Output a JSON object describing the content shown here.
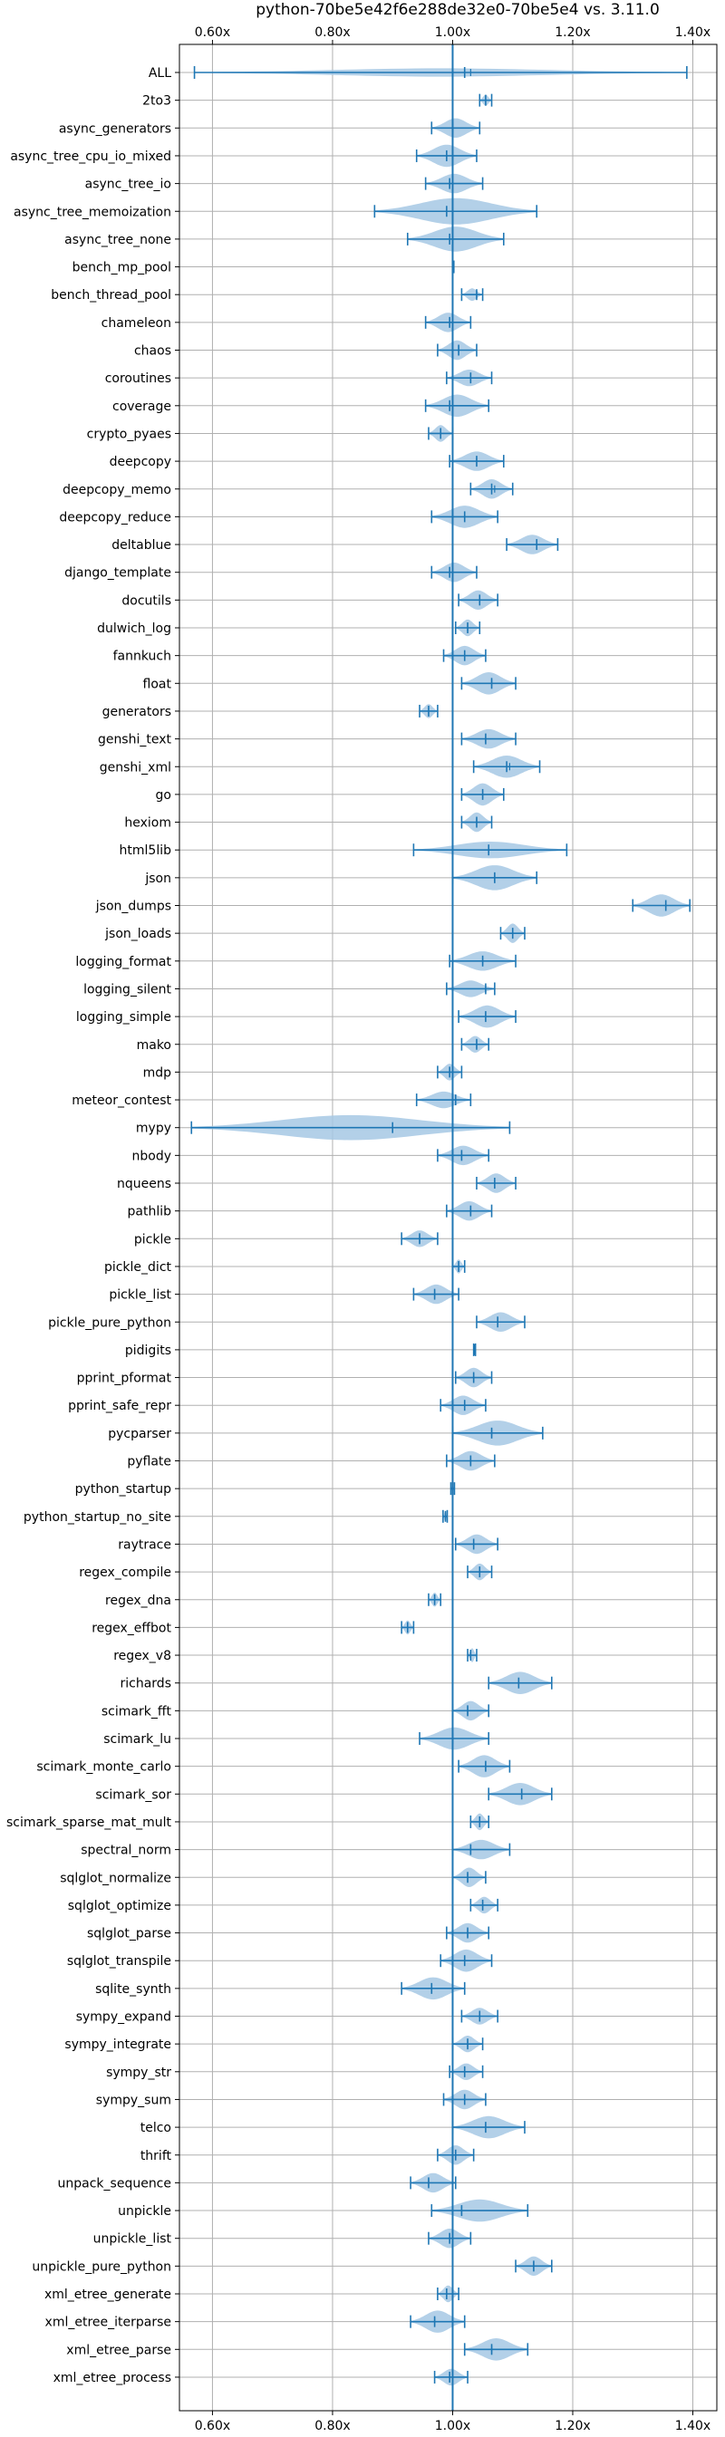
{
  "chart_data": {
    "type": "violin",
    "title": "python-70be5e42f6e288de32e0-70be5e4 vs. 3.11.0",
    "xlabel": "",
    "ylabel": "",
    "xlim": [
      0.545,
      1.44
    ],
    "x_ticks": [
      0.6,
      0.8,
      1.0,
      1.2,
      1.4
    ],
    "x_tick_labels": [
      "0.60x",
      "0.80x",
      "1.00x",
      "1.20x",
      "1.40x"
    ],
    "tick_axes": [
      "top",
      "bottom"
    ],
    "reference_line": 1.0,
    "grid": true,
    "colors": {
      "accent": "#1f77b4",
      "violin_fill": "#a6c8e4",
      "grid": "#b0b0b0"
    },
    "series": [
      {
        "name": "ALL",
        "min": 0.57,
        "max": 1.39,
        "median": 1.02,
        "mean": 1.03,
        "width": 0.3
      },
      {
        "name": "2to3",
        "min": 1.045,
        "max": 1.065,
        "median": 1.055,
        "mean": 1.055,
        "width": 0.4
      },
      {
        "name": "async_generators",
        "min": 0.965,
        "max": 1.045,
        "median": 1.0,
        "mean": 1.0,
        "width": 0.7
      },
      {
        "name": "async_tree_cpu_io_mixed",
        "min": 0.94,
        "max": 1.04,
        "median": 0.99,
        "mean": 0.99,
        "width": 0.8
      },
      {
        "name": "async_tree_io",
        "min": 0.955,
        "max": 1.05,
        "median": 0.995,
        "mean": 0.995,
        "width": 0.7
      },
      {
        "name": "async_tree_memoization",
        "min": 0.87,
        "max": 1.14,
        "median": 0.99,
        "mean": 1.0,
        "width": 0.95
      },
      {
        "name": "async_tree_none",
        "min": 0.925,
        "max": 1.085,
        "median": 0.995,
        "mean": 1.0,
        "width": 0.9
      },
      {
        "name": "bench_mp_pool",
        "min": 1.0,
        "max": 1.002,
        "median": 1.001,
        "mean": 1.001,
        "width": 0.2
      },
      {
        "name": "bench_thread_pool",
        "min": 1.015,
        "max": 1.05,
        "median": 1.04,
        "mean": 1.04,
        "width": 0.45
      },
      {
        "name": "chameleon",
        "min": 0.955,
        "max": 1.03,
        "median": 0.995,
        "mean": 0.995,
        "width": 0.7
      },
      {
        "name": "chaos",
        "min": 0.975,
        "max": 1.04,
        "median": 1.01,
        "mean": 1.01,
        "width": 0.7
      },
      {
        "name": "coroutines",
        "min": 0.99,
        "max": 1.065,
        "median": 1.03,
        "mean": 1.03,
        "width": 0.6
      },
      {
        "name": "coverage",
        "min": 0.955,
        "max": 1.06,
        "median": 0.995,
        "mean": 0.995,
        "width": 0.8
      },
      {
        "name": "crypto_pyaes",
        "min": 0.96,
        "max": 1.0,
        "median": 0.98,
        "mean": 0.98,
        "width": 0.6
      },
      {
        "name": "deepcopy",
        "min": 0.995,
        "max": 1.085,
        "median": 1.04,
        "mean": 1.04,
        "width": 0.7
      },
      {
        "name": "deepcopy_memo",
        "min": 1.03,
        "max": 1.1,
        "median": 1.065,
        "mean": 1.07,
        "width": 0.7
      },
      {
        "name": "deepcopy_reduce",
        "min": 0.965,
        "max": 1.075,
        "median": 1.02,
        "mean": 1.02,
        "width": 0.8
      },
      {
        "name": "deltablue",
        "min": 1.09,
        "max": 1.175,
        "median": 1.14,
        "mean": 1.14,
        "width": 0.7
      },
      {
        "name": "django_template",
        "min": 0.965,
        "max": 1.04,
        "median": 0.995,
        "mean": 1.0,
        "width": 0.7
      },
      {
        "name": "docutils",
        "min": 1.01,
        "max": 1.075,
        "median": 1.045,
        "mean": 1.045,
        "width": 0.7
      },
      {
        "name": "dulwich_log",
        "min": 1.005,
        "max": 1.045,
        "median": 1.025,
        "mean": 1.025,
        "width": 0.6
      },
      {
        "name": "fannkuch",
        "min": 0.985,
        "max": 1.055,
        "median": 1.02,
        "mean": 1.02,
        "width": 0.7
      },
      {
        "name": "float",
        "min": 1.015,
        "max": 1.105,
        "median": 1.065,
        "mean": 1.065,
        "width": 0.8
      },
      {
        "name": "generators",
        "min": 0.945,
        "max": 0.975,
        "median": 0.96,
        "mean": 0.96,
        "width": 0.5
      },
      {
        "name": "genshi_text",
        "min": 1.015,
        "max": 1.105,
        "median": 1.055,
        "mean": 1.055,
        "width": 0.7
      },
      {
        "name": "genshi_xml",
        "min": 1.035,
        "max": 1.145,
        "median": 1.09,
        "mean": 1.095,
        "width": 0.8
      },
      {
        "name": "go",
        "min": 1.015,
        "max": 1.085,
        "median": 1.05,
        "mean": 1.05,
        "width": 0.8
      },
      {
        "name": "hexiom",
        "min": 1.015,
        "max": 1.065,
        "median": 1.04,
        "mean": 1.04,
        "width": 0.7
      },
      {
        "name": "html5lib",
        "min": 0.935,
        "max": 1.19,
        "median": 1.06,
        "mean": 1.06,
        "width": 0.6
      },
      {
        "name": "json",
        "min": 1.0,
        "max": 1.14,
        "median": 1.07,
        "mean": 1.07,
        "width": 0.9
      },
      {
        "name": "json_dumps",
        "min": 1.3,
        "max": 1.395,
        "median": 1.355,
        "mean": 1.355,
        "width": 0.8
      },
      {
        "name": "json_loads",
        "min": 1.08,
        "max": 1.12,
        "median": 1.1,
        "mean": 1.1,
        "width": 0.7
      },
      {
        "name": "logging_format",
        "min": 0.995,
        "max": 1.105,
        "median": 1.05,
        "mean": 1.05,
        "width": 0.7
      },
      {
        "name": "logging_silent",
        "min": 0.99,
        "max": 1.07,
        "median": 1.055,
        "mean": 1.055,
        "width": 0.6
      },
      {
        "name": "logging_simple",
        "min": 1.01,
        "max": 1.105,
        "median": 1.055,
        "mean": 1.055,
        "width": 0.8
      },
      {
        "name": "mako",
        "min": 1.015,
        "max": 1.06,
        "median": 1.04,
        "mean": 1.04,
        "width": 0.6
      },
      {
        "name": "mdp",
        "min": 0.975,
        "max": 1.015,
        "median": 0.995,
        "mean": 0.995,
        "width": 0.6
      },
      {
        "name": "meteor_contest",
        "min": 0.94,
        "max": 1.03,
        "median": 1.005,
        "mean": 1.005,
        "width": 0.6
      },
      {
        "name": "mypy",
        "min": 0.565,
        "max": 1.095,
        "median": 0.9,
        "mean": 1.095,
        "width": 0.9
      },
      {
        "name": "nbody",
        "min": 0.975,
        "max": 1.06,
        "median": 1.015,
        "mean": 1.015,
        "width": 0.7
      },
      {
        "name": "nqueens",
        "min": 1.04,
        "max": 1.105,
        "median": 1.07,
        "mean": 1.07,
        "width": 0.7
      },
      {
        "name": "pathlib",
        "min": 0.99,
        "max": 1.065,
        "median": 1.03,
        "mean": 1.03,
        "width": 0.7
      },
      {
        "name": "pickle",
        "min": 0.915,
        "max": 0.975,
        "median": 0.945,
        "mean": 0.945,
        "width": 0.6
      },
      {
        "name": "pickle_dict",
        "min": 1.0,
        "max": 1.02,
        "median": 1.01,
        "mean": 1.01,
        "width": 0.5
      },
      {
        "name": "pickle_list",
        "min": 0.935,
        "max": 1.01,
        "median": 0.97,
        "mean": 0.97,
        "width": 0.7
      },
      {
        "name": "pickle_pure_python",
        "min": 1.04,
        "max": 1.12,
        "median": 1.075,
        "mean": 1.075,
        "width": 0.7
      },
      {
        "name": "pidigits",
        "min": 1.035,
        "max": 1.038,
        "median": 1.036,
        "mean": 1.036,
        "width": 0.35
      },
      {
        "name": "pprint_pformat",
        "min": 1.005,
        "max": 1.065,
        "median": 1.035,
        "mean": 1.035,
        "width": 0.7
      },
      {
        "name": "pprint_safe_repr",
        "min": 0.98,
        "max": 1.055,
        "median": 1.02,
        "mean": 1.02,
        "width": 0.7
      },
      {
        "name": "pycparser",
        "min": 1.0,
        "max": 1.15,
        "median": 1.065,
        "mean": 1.065,
        "width": 0.9
      },
      {
        "name": "pyflate",
        "min": 0.99,
        "max": 1.07,
        "median": 1.03,
        "mean": 1.03,
        "width": 0.7
      },
      {
        "name": "python_startup",
        "min": 0.997,
        "max": 1.003,
        "median": 1.0,
        "mean": 1.0,
        "width": 0.35
      },
      {
        "name": "python_startup_no_site",
        "min": 0.984,
        "max": 0.991,
        "median": 0.988,
        "mean": 0.988,
        "width": 0.35
      },
      {
        "name": "raytrace",
        "min": 1.005,
        "max": 1.075,
        "median": 1.035,
        "mean": 1.035,
        "width": 0.7
      },
      {
        "name": "regex_compile",
        "min": 1.025,
        "max": 1.065,
        "median": 1.045,
        "mean": 1.045,
        "width": 0.6
      },
      {
        "name": "regex_dna",
        "min": 0.96,
        "max": 0.98,
        "median": 0.97,
        "mean": 0.97,
        "width": 0.5
      },
      {
        "name": "regex_effbot",
        "min": 0.915,
        "max": 0.935,
        "median": 0.925,
        "mean": 0.925,
        "width": 0.5
      },
      {
        "name": "regex_v8",
        "min": 1.025,
        "max": 1.04,
        "median": 1.03,
        "mean": 1.03,
        "width": 0.5
      },
      {
        "name": "richards",
        "min": 1.06,
        "max": 1.165,
        "median": 1.11,
        "mean": 1.11,
        "width": 0.8
      },
      {
        "name": "scimark_fft",
        "min": 1.0,
        "max": 1.06,
        "median": 1.025,
        "mean": 1.025,
        "width": 0.7
      },
      {
        "name": "scimark_lu",
        "min": 0.945,
        "max": 1.06,
        "median": 1.0,
        "mean": 1.0,
        "width": 0.8
      },
      {
        "name": "scimark_monte_carlo",
        "min": 1.01,
        "max": 1.095,
        "median": 1.055,
        "mean": 1.055,
        "width": 0.8
      },
      {
        "name": "scimark_sor",
        "min": 1.06,
        "max": 1.165,
        "median": 1.115,
        "mean": 1.115,
        "width": 0.8
      },
      {
        "name": "scimark_sparse_mat_mult",
        "min": 1.03,
        "max": 1.06,
        "median": 1.045,
        "mean": 1.045,
        "width": 0.6
      },
      {
        "name": "spectral_norm",
        "min": 1.0,
        "max": 1.095,
        "median": 1.03,
        "mean": 1.03,
        "width": 0.7
      },
      {
        "name": "sqlglot_normalize",
        "min": 1.0,
        "max": 1.055,
        "median": 1.025,
        "mean": 1.025,
        "width": 0.7
      },
      {
        "name": "sqlglot_optimize",
        "min": 1.03,
        "max": 1.075,
        "median": 1.05,
        "mean": 1.05,
        "width": 0.6
      },
      {
        "name": "sqlglot_parse",
        "min": 0.99,
        "max": 1.06,
        "median": 1.025,
        "mean": 1.025,
        "width": 0.7
      },
      {
        "name": "sqlglot_transpile",
        "min": 0.98,
        "max": 1.065,
        "median": 1.02,
        "mean": 1.02,
        "width": 0.8
      },
      {
        "name": "sqlite_synth",
        "min": 0.915,
        "max": 1.02,
        "median": 0.965,
        "mean": 0.965,
        "width": 0.8
      },
      {
        "name": "sympy_expand",
        "min": 1.015,
        "max": 1.075,
        "median": 1.045,
        "mean": 1.045,
        "width": 0.6
      },
      {
        "name": "sympy_integrate",
        "min": 1.0,
        "max": 1.05,
        "median": 1.025,
        "mean": 1.025,
        "width": 0.6
      },
      {
        "name": "sympy_str",
        "min": 0.995,
        "max": 1.05,
        "median": 1.02,
        "mean": 1.02,
        "width": 0.6
      },
      {
        "name": "sympy_sum",
        "min": 0.985,
        "max": 1.055,
        "median": 1.02,
        "mean": 1.02,
        "width": 0.7
      },
      {
        "name": "telco",
        "min": 1.0,
        "max": 1.12,
        "median": 1.055,
        "mean": 1.055,
        "width": 0.8
      },
      {
        "name": "thrift",
        "min": 0.975,
        "max": 1.035,
        "median": 1.005,
        "mean": 1.005,
        "width": 0.7
      },
      {
        "name": "unpack_sequence",
        "min": 0.93,
        "max": 1.005,
        "median": 0.96,
        "mean": 0.96,
        "width": 0.7
      },
      {
        "name": "unpickle",
        "min": 0.965,
        "max": 1.125,
        "median": 1.015,
        "mean": 1.015,
        "width": 0.8
      },
      {
        "name": "unpickle_list",
        "min": 0.96,
        "max": 1.03,
        "median": 0.995,
        "mean": 0.995,
        "width": 0.7
      },
      {
        "name": "unpickle_pure_python",
        "min": 1.105,
        "max": 1.165,
        "median": 1.135,
        "mean": 1.135,
        "width": 0.7
      },
      {
        "name": "xml_etree_generate",
        "min": 0.975,
        "max": 1.01,
        "median": 0.99,
        "mean": 0.99,
        "width": 0.6
      },
      {
        "name": "xml_etree_iterparse",
        "min": 0.93,
        "max": 1.02,
        "median": 0.97,
        "mean": 0.97,
        "width": 0.8
      },
      {
        "name": "xml_etree_parse",
        "min": 1.02,
        "max": 1.125,
        "median": 1.065,
        "mean": 1.065,
        "width": 0.8
      },
      {
        "name": "xml_etree_process",
        "min": 0.97,
        "max": 1.025,
        "median": 0.995,
        "mean": 0.995,
        "width": 0.6
      }
    ]
  }
}
